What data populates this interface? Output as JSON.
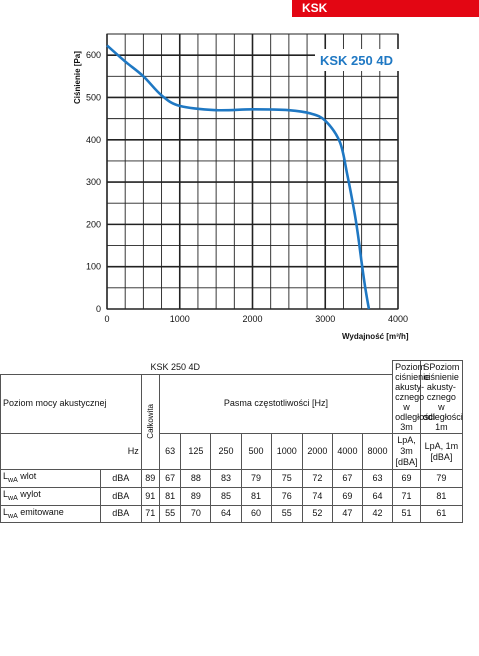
{
  "badge": "KSK",
  "chart_data": {
    "type": "line",
    "title": "KSK 250 4D",
    "xlabel": "Wydajność [m³/h]",
    "ylabel": "Ciśnienie [Pa]",
    "xlim": [
      0,
      4000
    ],
    "ylim": [
      0,
      650
    ],
    "xticks": [
      0,
      1000,
      2000,
      3000,
      4000
    ],
    "yticks": [
      0,
      100,
      200,
      300,
      400,
      500,
      600
    ],
    "grid": true,
    "series": [
      {
        "name": "",
        "color": "#1f78c3",
        "x": [
          0,
          250,
          500,
          750,
          1000,
          1500,
          2000,
          2500,
          2800,
          3000,
          3200,
          3300,
          3400,
          3450,
          3500,
          3550,
          3600
        ],
        "y": [
          623,
          585,
          550,
          505,
          480,
          470,
          472,
          470,
          462,
          445,
          395,
          320,
          230,
          175,
          110,
          50,
          0
        ]
      }
    ]
  },
  "table": {
    "model": "KSK 250 4D",
    "level_header": "Poziom mocy akustycznej",
    "total_header": "Całkowita",
    "bands_header": "Pasma częstotliwości [Hz]",
    "pressure3_header": "Poziom ciśnienie akusty-cznego w odległości 3m",
    "pressure1_header": "SPoziom ciśnienie akusty-cznego w odległości 1m",
    "hz_label": "Hz",
    "bands": [
      "63",
      "125",
      "250",
      "500",
      "1000",
      "2000",
      "4000",
      "8000"
    ],
    "pressure3_unit": "LpA, 3m [dBA]",
    "pressure1_unit": "LpA, 1m [dBA]",
    "rows": [
      {
        "name_main": "L",
        "name_sub": "wA",
        "name_rest": " wlot",
        "unit": "dBA",
        "total": "89",
        "bands": [
          "67",
          "88",
          "83",
          "79",
          "75",
          "72",
          "67",
          "63"
        ],
        "p3": "69",
        "p1": "79"
      },
      {
        "name_main": "L",
        "name_sub": "wA",
        "name_rest": " wylot",
        "unit": "dBA",
        "total": "91",
        "bands": [
          "81",
          "89",
          "85",
          "81",
          "76",
          "74",
          "69",
          "64"
        ],
        "p3": "71",
        "p1": "81"
      },
      {
        "name_main": "L",
        "name_sub": "wA",
        "name_rest": " emitowane",
        "unit": "dBA",
        "total": "71",
        "bands": [
          "55",
          "70",
          "64",
          "60",
          "55",
          "52",
          "47",
          "42"
        ],
        "p3": "51",
        "p1": "61"
      }
    ]
  }
}
